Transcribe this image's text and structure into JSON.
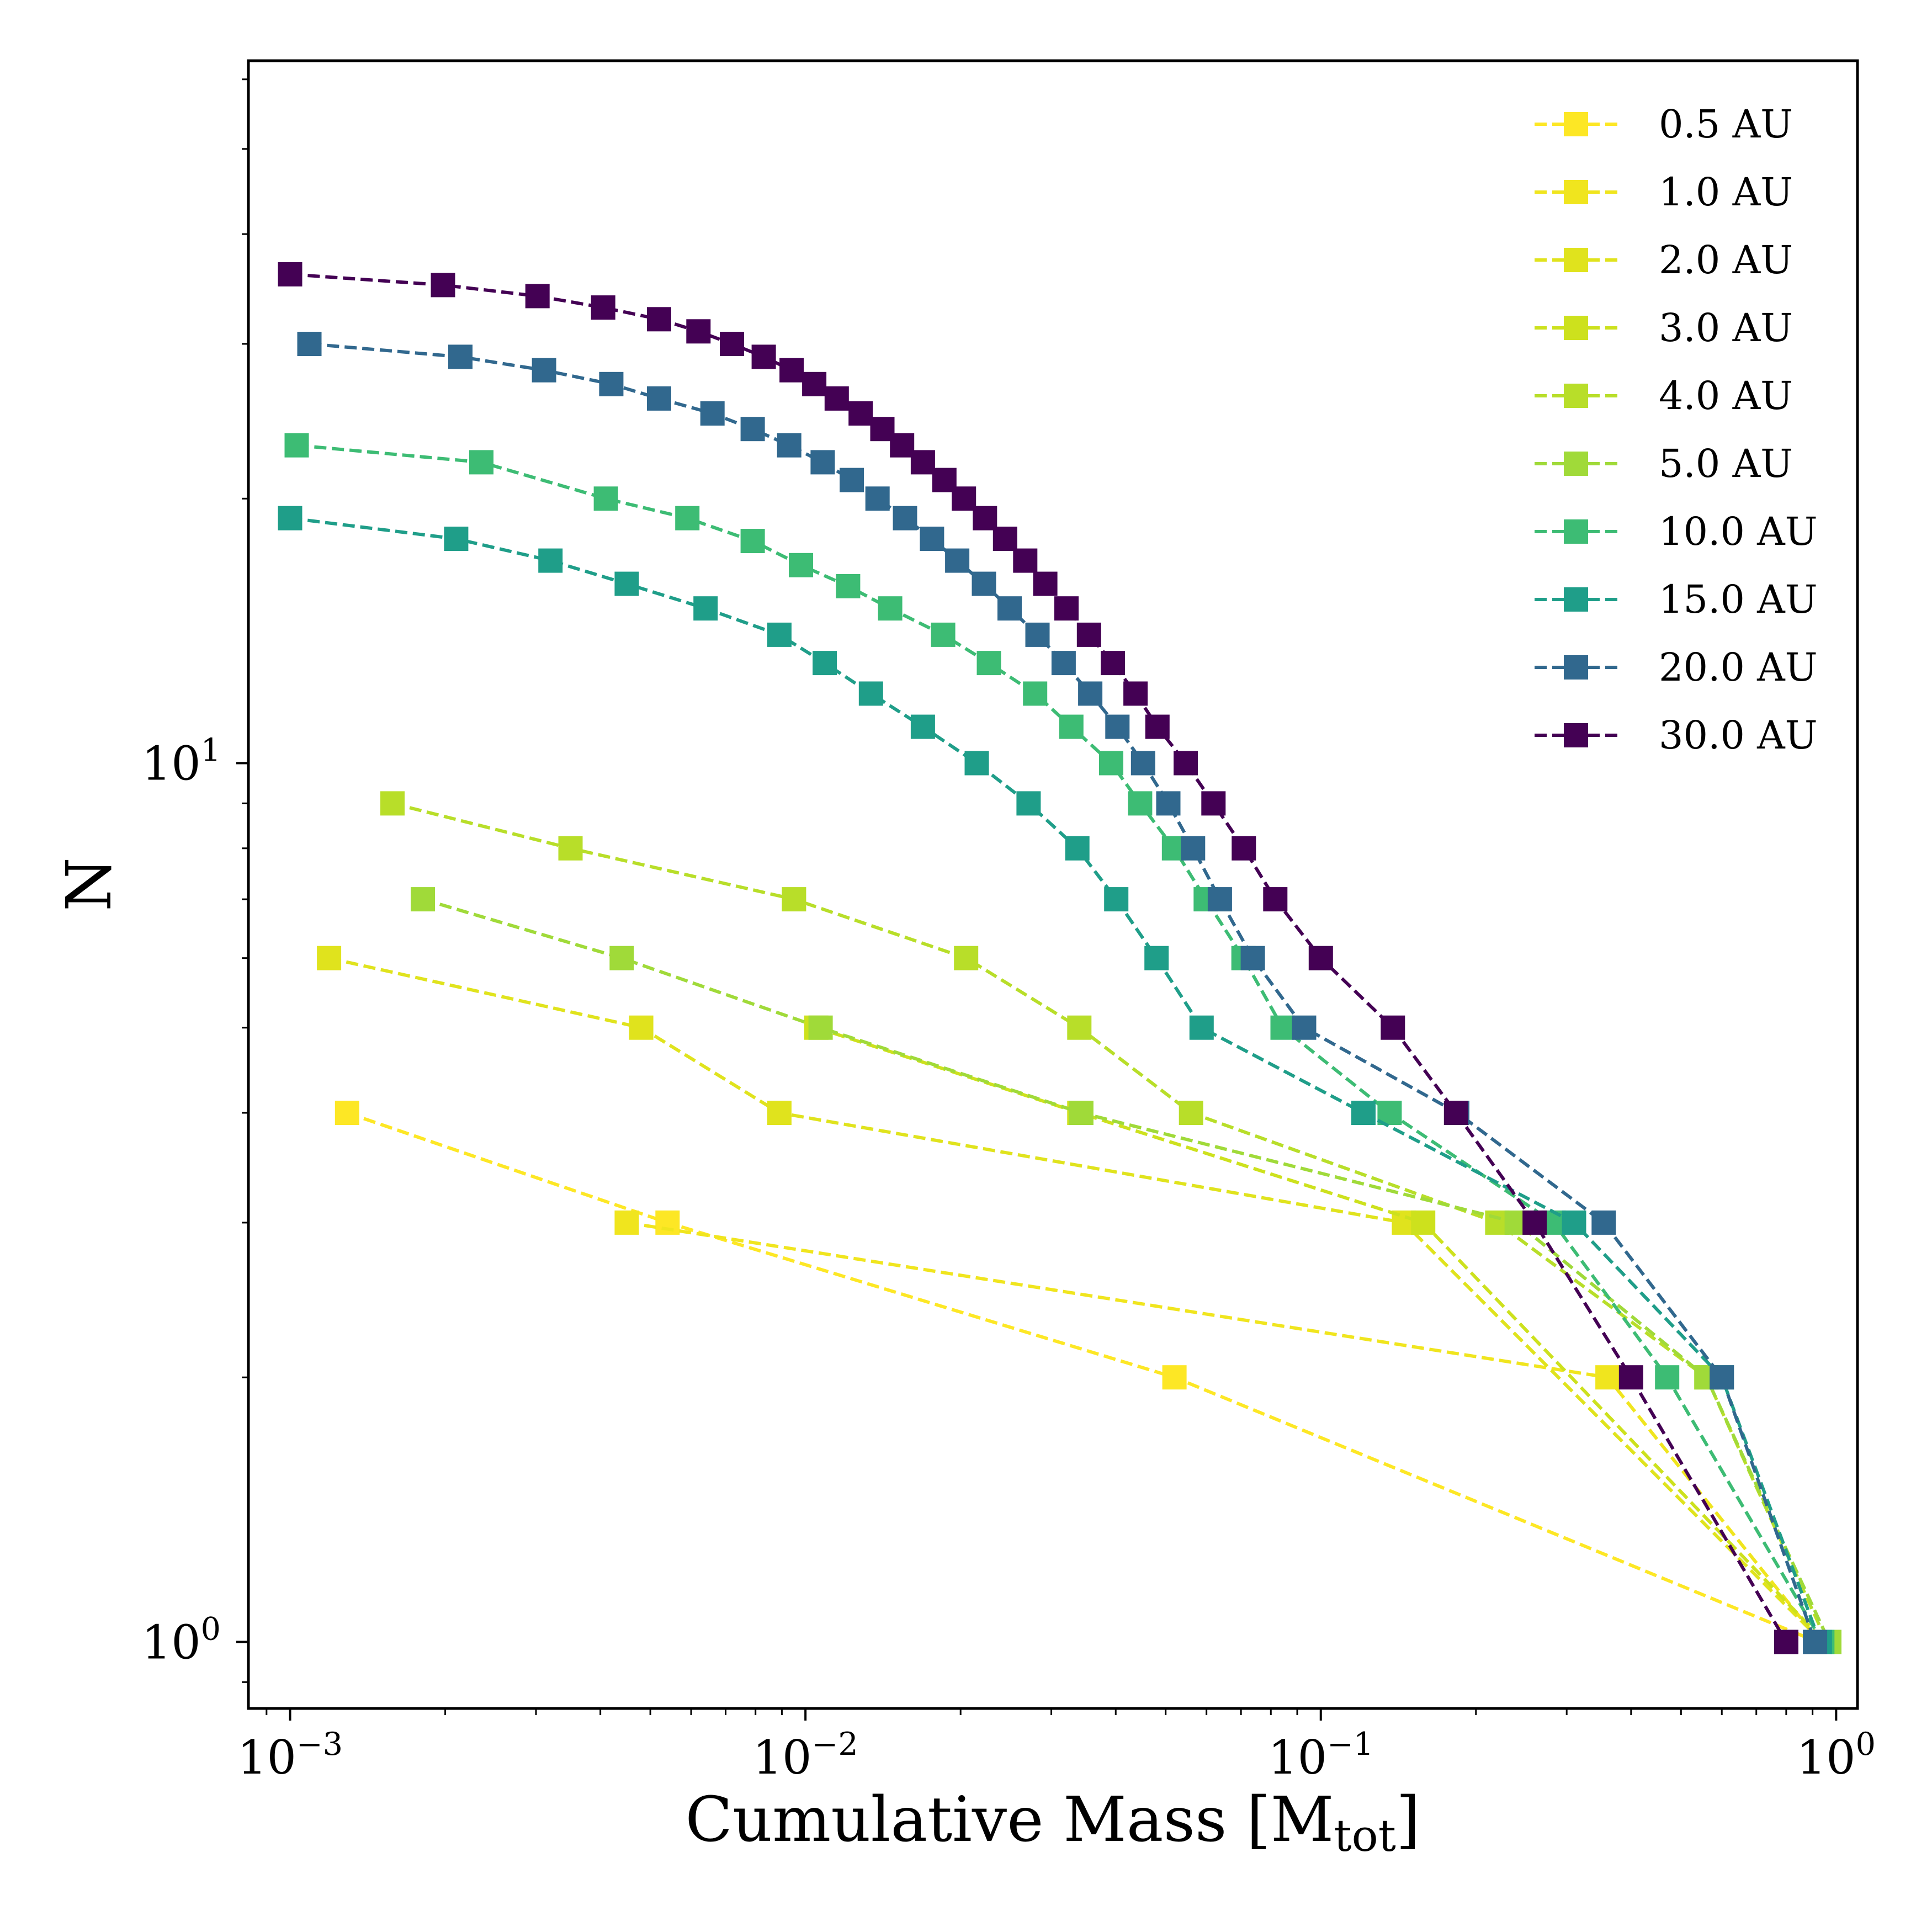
{
  "chart_data": {
    "type": "line",
    "title": "",
    "xlabel": "Cumulative Mass",
    "xlabel_unit_main": "M",
    "xlabel_unit_sub": "tot",
    "ylabel": "N",
    "xscale": "log",
    "yscale": "log",
    "xlim": [
      0.00083,
      1.1
    ],
    "ylim": [
      0.84,
      63
    ],
    "x_ticks": [
      {
        "base": "10",
        "exp": "−3",
        "value": 0.001
      },
      {
        "base": "10",
        "exp": "−2",
        "value": 0.01
      },
      {
        "base": "10",
        "exp": "−1",
        "value": 0.1
      },
      {
        "base": "10",
        "exp": "0",
        "value": 1
      }
    ],
    "y_ticks": [
      {
        "base": "10",
        "exp": "0",
        "value": 1
      },
      {
        "base": "10",
        "exp": "1",
        "value": 10
      }
    ],
    "legend_position": "top-right",
    "marker": "square",
    "line_style": "dashed",
    "series": [
      {
        "name": "0.5 AU",
        "color": "#fde725",
        "points": [
          [
            0.00129,
            4
          ],
          [
            0.0054,
            3
          ],
          [
            0.052,
            2
          ],
          [
            0.92,
            1
          ]
        ]
      },
      {
        "name": "1.0 AU",
        "color": "#f0e51e",
        "points": [
          [
            0.0045,
            3
          ],
          [
            0.36,
            2
          ],
          [
            0.93,
            1
          ]
        ]
      },
      {
        "name": "2.0 AU",
        "color": "#e0e31d",
        "points": [
          [
            0.00119,
            6
          ],
          [
            0.0048,
            5
          ],
          [
            0.0089,
            4
          ],
          [
            0.145,
            3
          ],
          [
            0.94,
            1
          ]
        ]
      },
      {
        "name": "3.0 AU",
        "color": "#cde11d",
        "points": [
          [
            0.0105,
            5
          ],
          [
            0.034,
            4
          ],
          [
            0.158,
            3
          ],
          [
            0.95,
            1
          ]
        ]
      },
      {
        "name": "4.0 AU",
        "color": "#b8de29",
        "points": [
          [
            0.00158,
            9
          ],
          [
            0.0035,
            8
          ],
          [
            0.0095,
            7
          ],
          [
            0.0205,
            6
          ],
          [
            0.034,
            5
          ],
          [
            0.056,
            4
          ],
          [
            0.22,
            3
          ],
          [
            0.56,
            2
          ],
          [
            0.96,
            1
          ]
        ]
      },
      {
        "name": "5.0 AU",
        "color": "#a0da39",
        "points": [
          [
            0.00181,
            7
          ],
          [
            0.0044,
            6
          ],
          [
            0.0107,
            5
          ],
          [
            0.0343,
            4
          ],
          [
            0.24,
            3
          ],
          [
            0.56,
            2
          ],
          [
            0.97,
            1
          ]
        ]
      },
      {
        "name": "10.0 AU",
        "color": "#3dbc74",
        "points": [
          [
            0.00103,
            23
          ],
          [
            0.00235,
            22
          ],
          [
            0.0041,
            20
          ],
          [
            0.0059,
            19
          ],
          [
            0.0079,
            17.9
          ],
          [
            0.0098,
            16.8
          ],
          [
            0.0121,
            15.9
          ],
          [
            0.0146,
            15
          ],
          [
            0.0185,
            14
          ],
          [
            0.0227,
            13
          ],
          [
            0.0279,
            12
          ],
          [
            0.0328,
            11
          ],
          [
            0.0392,
            10
          ],
          [
            0.0446,
            9
          ],
          [
            0.0519,
            8
          ],
          [
            0.0598,
            7
          ],
          [
            0.0708,
            6
          ],
          [
            0.0843,
            5
          ],
          [
            0.136,
            4
          ],
          [
            0.283,
            3
          ],
          [
            0.47,
            2
          ],
          [
            0.94,
            1
          ]
        ]
      },
      {
        "name": "15.0 AU",
        "color": "#1f9e89",
        "points": [
          [
            0.001,
            19
          ],
          [
            0.0021,
            18
          ],
          [
            0.0032,
            17
          ],
          [
            0.0045,
            16
          ],
          [
            0.0064,
            15
          ],
          [
            0.0089,
            14
          ],
          [
            0.0109,
            13
          ],
          [
            0.0134,
            12
          ],
          [
            0.0169,
            11
          ],
          [
            0.0215,
            10
          ],
          [
            0.0271,
            9
          ],
          [
            0.0337,
            8
          ],
          [
            0.0401,
            7
          ],
          [
            0.048,
            6
          ],
          [
            0.0587,
            5
          ],
          [
            0.121,
            4
          ],
          [
            0.31,
            3
          ],
          [
            0.6,
            2
          ],
          [
            0.93,
            1
          ]
        ]
      },
      {
        "name": "20.0 AU",
        "color": "#31688e",
        "points": [
          [
            0.00109,
            30
          ],
          [
            0.00214,
            29
          ],
          [
            0.00311,
            28
          ],
          [
            0.0042,
            27
          ],
          [
            0.0052,
            26
          ],
          [
            0.0066,
            25
          ],
          [
            0.0079,
            24
          ],
          [
            0.0093,
            23
          ],
          [
            0.0108,
            22
          ],
          [
            0.0123,
            21
          ],
          [
            0.0138,
            20
          ],
          [
            0.0156,
            19
          ],
          [
            0.0176,
            18
          ],
          [
            0.0197,
            17
          ],
          [
            0.0222,
            16
          ],
          [
            0.0249,
            15
          ],
          [
            0.0282,
            14
          ],
          [
            0.0317,
            13
          ],
          [
            0.0357,
            12
          ],
          [
            0.0403,
            11
          ],
          [
            0.0452,
            10
          ],
          [
            0.0506,
            9
          ],
          [
            0.0565,
            8
          ],
          [
            0.0637,
            7
          ],
          [
            0.0738,
            6
          ],
          [
            0.0928,
            5
          ],
          [
            0.184,
            4
          ],
          [
            0.354,
            3
          ],
          [
            0.6,
            2
          ],
          [
            0.91,
            1
          ]
        ]
      },
      {
        "name": "30.0 AU",
        "color": "#440154",
        "points": [
          [
            0.001,
            36
          ],
          [
            0.00198,
            35
          ],
          [
            0.00302,
            34
          ],
          [
            0.00405,
            33
          ],
          [
            0.0052,
            32
          ],
          [
            0.0062,
            31
          ],
          [
            0.0072,
            30
          ],
          [
            0.0083,
            29
          ],
          [
            0.0094,
            28
          ],
          [
            0.0104,
            27
          ],
          [
            0.0115,
            26
          ],
          [
            0.0128,
            25
          ],
          [
            0.0141,
            24
          ],
          [
            0.0154,
            23
          ],
          [
            0.0169,
            22
          ],
          [
            0.0186,
            21
          ],
          [
            0.0203,
            20
          ],
          [
            0.0223,
            19
          ],
          [
            0.0244,
            18
          ],
          [
            0.0267,
            17
          ],
          [
            0.0292,
            16
          ],
          [
            0.0321,
            15
          ],
          [
            0.0355,
            14
          ],
          [
            0.0395,
            13
          ],
          [
            0.0437,
            12
          ],
          [
            0.0482,
            11
          ],
          [
            0.0547,
            10
          ],
          [
            0.0619,
            9
          ],
          [
            0.0709,
            8
          ],
          [
            0.0816,
            7
          ],
          [
            0.1,
            6
          ],
          [
            0.138,
            5
          ],
          [
            0.183,
            4
          ],
          [
            0.26,
            3
          ],
          [
            0.4,
            2
          ],
          [
            0.8,
            1
          ]
        ]
      }
    ]
  }
}
